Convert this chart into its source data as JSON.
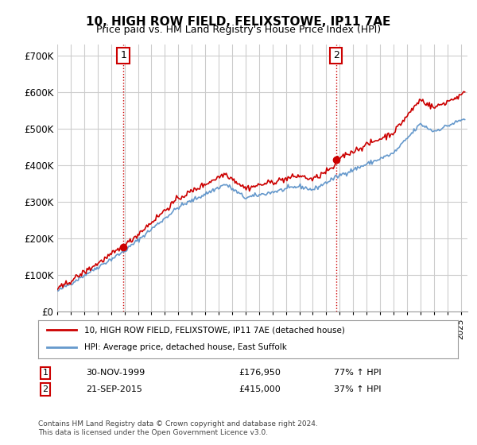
{
  "title": "10, HIGH ROW FIELD, FELIXSTOWE, IP11 7AE",
  "subtitle": "Price paid vs. HM Land Registry's House Price Index (HPI)",
  "ylabel_ticks": [
    "£0",
    "£100K",
    "£200K",
    "£300K",
    "£400K",
    "£500K",
    "£600K",
    "£700K"
  ],
  "ylim": [
    0,
    730000
  ],
  "xlim_start": 1995.0,
  "xlim_end": 2025.5,
  "sale1_date": 1999.917,
  "sale1_price": 176950,
  "sale1_label": "1",
  "sale2_date": 2015.722,
  "sale2_price": 415000,
  "sale2_label": "2",
  "legend_line1": "10, HIGH ROW FIELD, FELIXSTOWE, IP11 7AE (detached house)",
  "legend_line2": "HPI: Average price, detached house, East Suffolk",
  "table_row1": [
    "1",
    "30-NOV-1999",
    "£176,950",
    "77% ↑ HPI"
  ],
  "table_row2": [
    "2",
    "21-SEP-2015",
    "£415,000",
    "37% ↑ HPI"
  ],
  "footnote": "Contains HM Land Registry data © Crown copyright and database right 2024.\nThis data is licensed under the Open Government Licence v3.0.",
  "hpi_color": "#6699cc",
  "price_color": "#cc0000",
  "marker_color": "#cc0000",
  "bg_color": "#ffffff",
  "grid_color": "#cccccc",
  "sale_vline_color": "#cc0000",
  "box_color": "#cc0000"
}
